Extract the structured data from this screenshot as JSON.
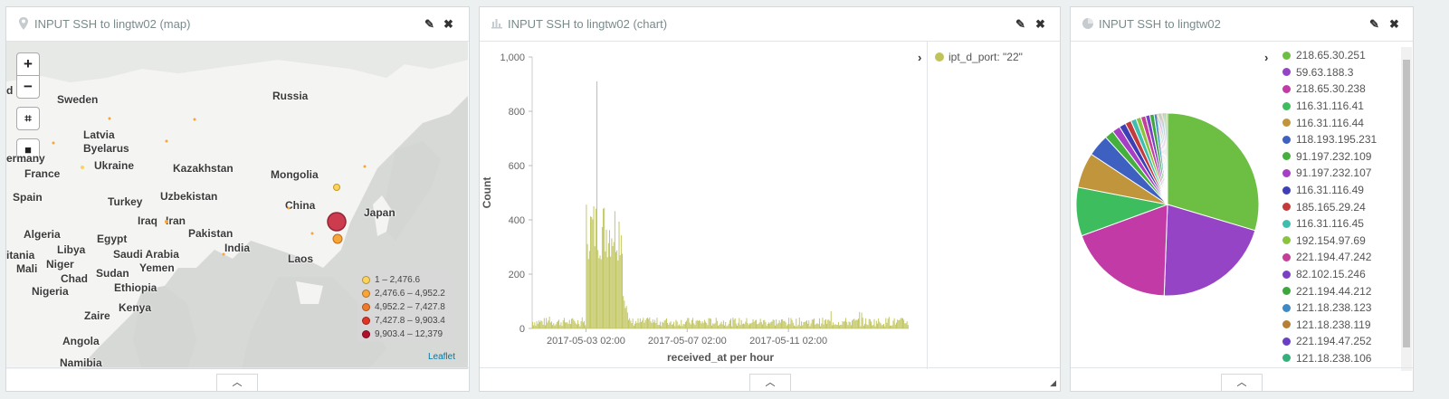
{
  "map_panel": {
    "title": "INPUT SSH to lingtw02 (map)",
    "zoom_in": "+",
    "zoom_out": "−",
    "countries": [
      {
        "name": "Russia"
      },
      {
        "name": "Sweden"
      },
      {
        "name": "Latvia"
      },
      {
        "name": "Byelarus"
      },
      {
        "name": "Ukraine"
      },
      {
        "name": "ermany"
      },
      {
        "name": "France"
      },
      {
        "name": "Kazakhstan"
      },
      {
        "name": "Mongolia"
      },
      {
        "name": "Spain"
      },
      {
        "name": "Turkey"
      },
      {
        "name": "Uzbekistan"
      },
      {
        "name": "China"
      },
      {
        "name": "Japan"
      },
      {
        "name": "Iraq"
      },
      {
        "name": "Iran"
      },
      {
        "name": "Algeria"
      },
      {
        "name": "Pakistan"
      },
      {
        "name": "Egypt"
      },
      {
        "name": "Libya"
      },
      {
        "name": "India"
      },
      {
        "name": "itania"
      },
      {
        "name": "Saudi Arabia"
      },
      {
        "name": "Niger"
      },
      {
        "name": "Laos"
      },
      {
        "name": "Mali"
      },
      {
        "name": "Yemen"
      },
      {
        "name": "Chad"
      },
      {
        "name": "Sudan"
      },
      {
        "name": "Nigeria"
      },
      {
        "name": "Ethiopia"
      },
      {
        "name": "Kenya"
      },
      {
        "name": "Zaire"
      },
      {
        "name": "Angola"
      },
      {
        "name": "Namibia"
      },
      {
        "name": "d"
      }
    ],
    "legend": [
      {
        "label": "1 – 2,476.6",
        "color": "#fdd35c"
      },
      {
        "label": "2,476.6 – 4,952.2",
        "color": "#f9a437"
      },
      {
        "label": "4,952.2 – 7,427.8",
        "color": "#ef7a2e"
      },
      {
        "label": "7,427.8 – 9,903.4",
        "color": "#e03424"
      },
      {
        "label": "9,903.4 – 12,379",
        "color": "#b0102a"
      }
    ],
    "attribution": "Leaflet"
  },
  "chart_panel": {
    "title": "INPUT SSH to lingtw02 (chart)",
    "legend_label": "ipt_d_port: \"22\"",
    "legend_color": "#bfc45a"
  },
  "pie_panel": {
    "title": "INPUT SSH to lingtw02"
  },
  "chart_data": [
    {
      "type": "bar",
      "ylabel": "Count",
      "xlabel": "received_at per hour",
      "ylim": [
        0,
        1000
      ],
      "yticks": [
        "0",
        "200",
        "400",
        "600",
        "800",
        "1,000"
      ],
      "xticks": [
        "2017-05-03 02:00",
        "2017-05-07 02:00",
        "2017-05-11 02:00"
      ],
      "series": [
        {
          "name": "ipt_d_port: \"22\"",
          "color": "#bfc45a"
        }
      ],
      "x_range": [
        "2017-04-30 23:00",
        "2017-05-15 20:00"
      ],
      "peak": {
        "x": "2017-05-03 12:00",
        "value": 910
      },
      "approx_profile": "low baseline ~10–40 counts per hour, a burst of ~300–480 counts per hour between 2017-05-03 02:00 and 2017-05-04 12:00 with a single spike ~910, then tapering to baseline"
    },
    {
      "type": "pie",
      "labels": [
        "218.65.30.251",
        "59.63.188.3",
        "218.65.30.238",
        "116.31.116.41",
        "116.31.116.44",
        "118.193.195.231",
        "91.197.232.109",
        "91.197.232.107",
        "116.31.116.49",
        "185.165.29.24",
        "116.31.116.45",
        "192.154.97.69",
        "221.194.47.242",
        "82.102.15.246",
        "221.194.44.212",
        "121.18.238.123",
        "121.18.238.119",
        "221.194.47.252",
        "121.18.238.106"
      ],
      "colors": [
        "#6dbf44",
        "#9444c4",
        "#c13aa6",
        "#3ebd5f",
        "#c0953c",
        "#3e60c0",
        "#45b03d",
        "#a63fc4",
        "#3f3fb5",
        "#c43b3b",
        "#3fbeb0",
        "#8ac43f",
        "#c43f9a",
        "#7a3fc4",
        "#3ea63e",
        "#3f8ac4",
        "#b57f35",
        "#6b3fc4",
        "#36b07a"
      ],
      "values": [
        27.5,
        19.5,
        17.5,
        8.0,
        5.8,
        3.6,
        1.5,
        1.3,
        1.1,
        1.0,
        0.9,
        0.8,
        0.8,
        0.7,
        0.7,
        0.6,
        0.6,
        0.5,
        0.5
      ]
    }
  ]
}
